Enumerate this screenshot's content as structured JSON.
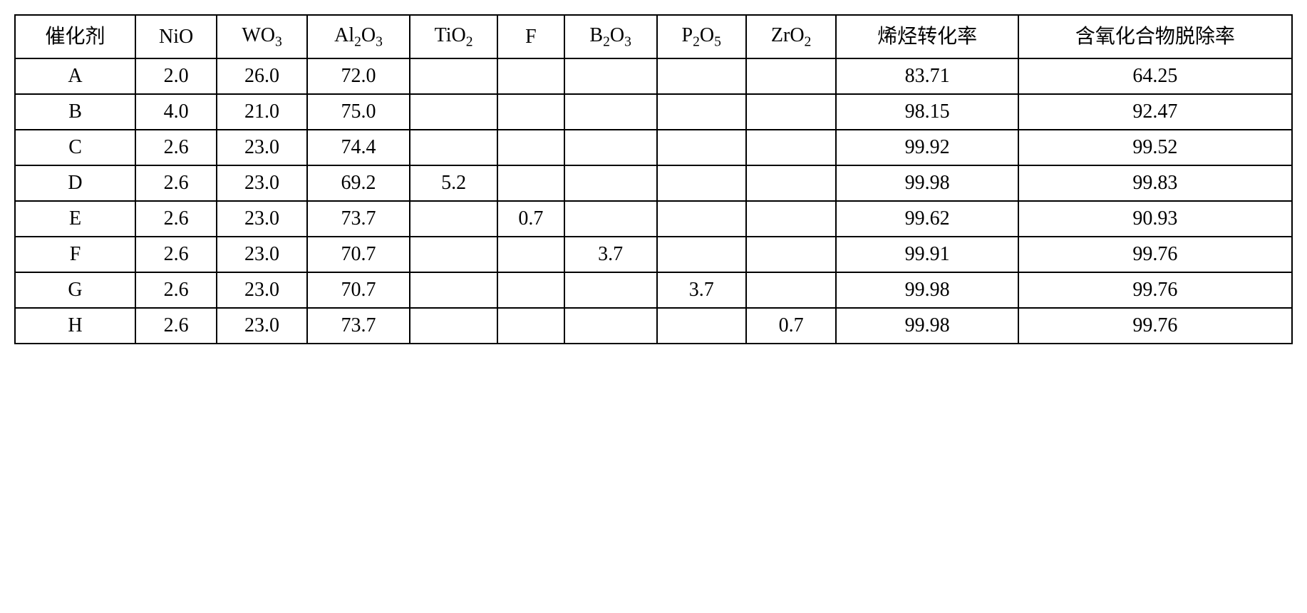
{
  "table": {
    "headers": {
      "catalyst": "催化剂",
      "nio": "NiO",
      "wo3": "WO",
      "wo3_sub": "3",
      "al2o3_pre": "Al",
      "al2o3_sub1": "2",
      "al2o3_mid": "O",
      "al2o3_sub2": "3",
      "tio2": "TiO",
      "tio2_sub": "2",
      "f": "F",
      "b2o3_pre": "B",
      "b2o3_sub1": "2",
      "b2o3_mid": "O",
      "b2o3_sub2": "3",
      "p2o5_pre": "P",
      "p2o5_sub1": "2",
      "p2o5_mid": "O",
      "p2o5_sub2": "5",
      "zro2": "ZrO",
      "zro2_sub": "2",
      "olefin_conv": "烯烃转化率",
      "oxygen_removal": "含氧化合物脱除率"
    },
    "rows": [
      {
        "catalyst": "A",
        "nio": "2.0",
        "wo3": "26.0",
        "al2o3": "72.0",
        "tio2": "",
        "f": "",
        "b2o3": "",
        "p2o5": "",
        "zro2": "",
        "olefin_conv": "83.71",
        "oxygen_removal": "64.25"
      },
      {
        "catalyst": "B",
        "nio": "4.0",
        "wo3": "21.0",
        "al2o3": "75.0",
        "tio2": "",
        "f": "",
        "b2o3": "",
        "p2o5": "",
        "zro2": "",
        "olefin_conv": "98.15",
        "oxygen_removal": "92.47"
      },
      {
        "catalyst": "C",
        "nio": "2.6",
        "wo3": "23.0",
        "al2o3": "74.4",
        "tio2": "",
        "f": "",
        "b2o3": "",
        "p2o5": "",
        "zro2": "",
        "olefin_conv": "99.92",
        "oxygen_removal": "99.52"
      },
      {
        "catalyst": "D",
        "nio": "2.6",
        "wo3": "23.0",
        "al2o3": "69.2",
        "tio2": "5.2",
        "f": "",
        "b2o3": "",
        "p2o5": "",
        "zro2": "",
        "olefin_conv": "99.98",
        "oxygen_removal": "99.83"
      },
      {
        "catalyst": "E",
        "nio": "2.6",
        "wo3": "23.0",
        "al2o3": "73.7",
        "tio2": "",
        "f": "0.7",
        "b2o3": "",
        "p2o5": "",
        "zro2": "",
        "olefin_conv": "99.62",
        "oxygen_removal": "90.93"
      },
      {
        "catalyst": "F",
        "nio": "2.6",
        "wo3": "23.0",
        "al2o3": "70.7",
        "tio2": "",
        "f": "",
        "b2o3": "3.7",
        "p2o5": "",
        "zro2": "",
        "olefin_conv": "99.91",
        "oxygen_removal": "99.76"
      },
      {
        "catalyst": "G",
        "nio": "2.6",
        "wo3": "23.0",
        "al2o3": "70.7",
        "tio2": "",
        "f": "",
        "b2o3": "",
        "p2o5": "3.7",
        "zro2": "",
        "olefin_conv": "99.98",
        "oxygen_removal": "99.76"
      },
      {
        "catalyst": "H",
        "nio": "2.6",
        "wo3": "23.0",
        "al2o3": "73.7",
        "tio2": "",
        "f": "",
        "b2o3": "",
        "p2o5": "",
        "zro2": "0.7",
        "olefin_conv": "99.98",
        "oxygen_removal": "99.76"
      }
    ]
  },
  "styling": {
    "border_color": "#000000",
    "border_width": 2,
    "background_color": "#ffffff",
    "font_size": 28,
    "font_family": "Times New Roman",
    "cell_padding": "8px 12px",
    "text_align": "center"
  }
}
